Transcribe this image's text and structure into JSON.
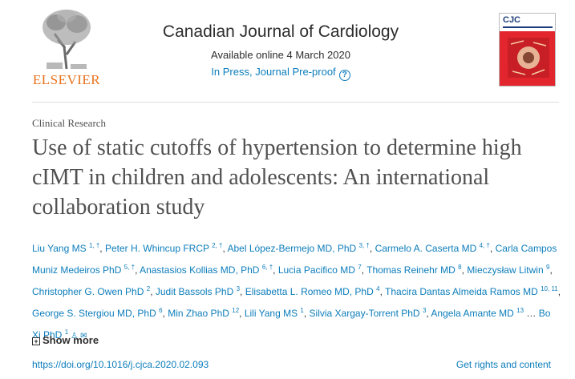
{
  "header": {
    "publisher": "ELSEVIER",
    "journal_title": "Canadian Journal of Cardiology",
    "available_online": "Available online 4 March 2020",
    "status": "In Press, Journal Pre-proof",
    "help_icon": "help-icon",
    "cover_logo": "CJC",
    "colors": {
      "brand_orange": "#e9711c",
      "link_blue": "#0c7dbb",
      "cover_red": "#e3262e"
    }
  },
  "article": {
    "section": "Clinical Research",
    "title": "Use of static cutoffs of hypertension to determine high cIMT in children and adolescents: An international collaboration study"
  },
  "authors": [
    {
      "name": "Liu Yang MS",
      "sup": "1, †"
    },
    {
      "name": "Peter H. Whincup FRCP",
      "sup": "2, †"
    },
    {
      "name": "Abel López-Bermejo MD, PhD",
      "sup": "3, †"
    },
    {
      "name": "Carmelo A. Caserta MD",
      "sup": "4, †"
    },
    {
      "name": "Carla Campos Muniz Medeiros PhD",
      "sup": "5, †"
    },
    {
      "name": "Anastasios Kollias MD, PhD",
      "sup": "6, †"
    },
    {
      "name": "Lucia Pacifico MD",
      "sup": "7"
    },
    {
      "name": "Thomas Reinehr MD",
      "sup": "8"
    },
    {
      "name": "Mieczysław Litwin",
      "sup": "9"
    },
    {
      "name": "Christopher G. Owen PhD",
      "sup": "2"
    },
    {
      "name": "Judit Bassols PhD",
      "sup": "3"
    },
    {
      "name": "Elisabetta L. Romeo MD, PhD",
      "sup": "4"
    },
    {
      "name": "Thacira Dantas Almeida Ramos MD",
      "sup": "10, 11"
    },
    {
      "name": "George S. Stergiou MD, PhD",
      "sup": "6"
    },
    {
      "name": "Min Zhao PhD",
      "sup": "12"
    },
    {
      "name": "Lili Yang MS",
      "sup": "1"
    },
    {
      "name": "Silvia Xargay-Torrent PhD",
      "sup": "3"
    },
    {
      "name": "Angela Amante MD",
      "sup": "13"
    }
  ],
  "authors_ellipsis": "…",
  "last_author": {
    "name": "Bo Xi PhD",
    "sup": "1"
  },
  "show_more": "Show more",
  "doi": "https://doi.org/10.1016/j.cjca.2020.02.093",
  "rights": "Get rights and content"
}
